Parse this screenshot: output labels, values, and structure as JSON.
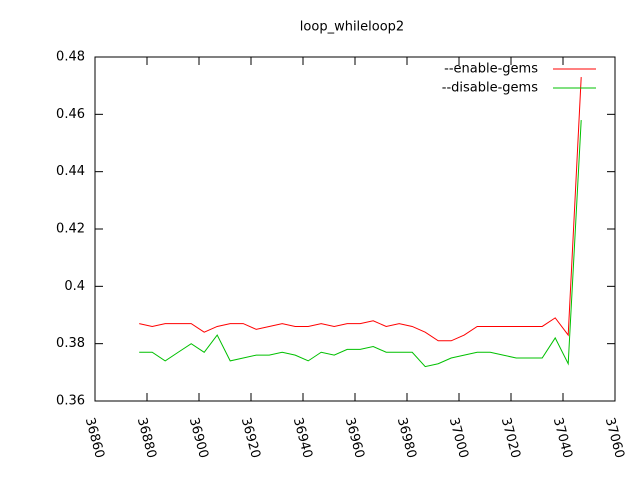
{
  "chart_data": {
    "type": "line",
    "title": "loop_whileloop2",
    "x": [
      36877,
      36882,
      36887,
      36892,
      36897,
      36902,
      36907,
      36912,
      36917,
      36922,
      36927,
      36932,
      36937,
      36942,
      36947,
      36952,
      36957,
      36962,
      36967,
      36972,
      36977,
      36982,
      36987,
      36992,
      36997,
      37002,
      37007,
      37012,
      37017,
      37022,
      37027,
      37032,
      37037,
      37042,
      37047
    ],
    "series": [
      {
        "name": "--enable-gems",
        "color": "#ff0000",
        "values": [
          0.387,
          0.386,
          0.387,
          0.387,
          0.387,
          0.384,
          0.386,
          0.387,
          0.387,
          0.385,
          0.386,
          0.387,
          0.386,
          0.386,
          0.387,
          0.386,
          0.387,
          0.387,
          0.388,
          0.386,
          0.387,
          0.386,
          0.384,
          0.381,
          0.381,
          0.383,
          0.386,
          0.386,
          0.386,
          0.386,
          0.386,
          0.386,
          0.389,
          0.383,
          0.473
        ]
      },
      {
        "name": "--disable-gems",
        "color": "#00c000",
        "values": [
          0.377,
          0.377,
          0.374,
          0.377,
          0.38,
          0.377,
          0.383,
          0.374,
          0.375,
          0.376,
          0.376,
          0.377,
          0.376,
          0.374,
          0.377,
          0.376,
          0.378,
          0.378,
          0.379,
          0.377,
          0.377,
          0.377,
          0.372,
          0.373,
          0.375,
          0.376,
          0.377,
          0.377,
          0.376,
          0.375,
          0.375,
          0.375,
          0.382,
          0.373,
          0.458
        ]
      }
    ],
    "xlim": [
      36860,
      37060
    ],
    "xticks": [
      36860,
      36880,
      36900,
      36920,
      36940,
      36960,
      36980,
      37000,
      37020,
      37040,
      37060
    ],
    "ylim": [
      0.36,
      0.48
    ],
    "yticks": [
      0.36,
      0.38,
      0.4,
      0.42,
      0.44,
      0.46,
      0.48
    ],
    "legend": "top-right"
  }
}
